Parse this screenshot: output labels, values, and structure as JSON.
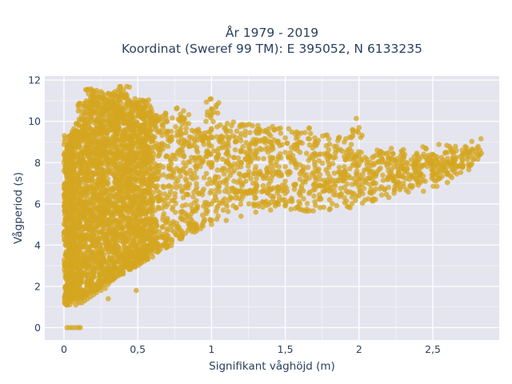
{
  "chart_data": {
    "type": "scatter",
    "title_lines": [
      "År 1979 - 2019",
      "Koordinat (Sweref 99 TM): E 395052, N 6133235"
    ],
    "xlabel": "Signifikant våghöjd (m)",
    "ylabel": "Vågperiod (s)",
    "xlim": [
      -0.13,
      2.95
    ],
    "ylim": [
      -0.6,
      12.2
    ],
    "xticks": [
      0,
      0.5,
      1,
      1.5,
      2,
      2.5
    ],
    "xtick_labels": [
      "0",
      "0,5",
      "1",
      "1,5",
      "2",
      "2,5"
    ],
    "yticks": [
      0,
      2,
      4,
      6,
      8,
      10,
      12
    ],
    "ytick_labels": [
      "0",
      "2",
      "4",
      "6",
      "8",
      "10",
      "12"
    ],
    "grid": true,
    "legend": "none",
    "colors": {
      "marker": "#d4a520",
      "plot_bg": "#e5e5f0",
      "grid": "#ffffff",
      "text": "#2a3f5f"
    },
    "series": [
      {
        "points": [
          [
            0.02,
            0
          ],
          [
            0.04,
            0
          ],
          [
            0.06,
            0
          ],
          [
            0.08,
            0
          ],
          [
            0.1,
            0
          ],
          [
            0.11,
            0
          ],
          [
            0.01,
            1.3
          ],
          [
            0.01,
            1.6
          ],
          [
            0.01,
            2.0
          ],
          [
            0.01,
            2.5
          ],
          [
            0.01,
            3.0
          ],
          [
            0.01,
            3.5
          ],
          [
            0.02,
            4.0
          ],
          [
            0.02,
            4.5
          ],
          [
            0.02,
            5.0
          ],
          [
            0.02,
            5.5
          ],
          [
            0.02,
            6.0
          ],
          [
            0.02,
            6.5
          ],
          [
            0.02,
            7.0
          ],
          [
            0.02,
            7.5
          ],
          [
            0.02,
            8.0
          ],
          [
            0.02,
            8.5
          ],
          [
            0.03,
            8.9
          ],
          [
            0.05,
            1.5
          ],
          [
            0.06,
            2.0
          ],
          [
            0.07,
            2.5
          ],
          [
            0.05,
            3.0
          ],
          [
            0.06,
            3.5
          ],
          [
            0.05,
            4.2
          ],
          [
            0.06,
            5.0
          ],
          [
            0.05,
            6.0
          ],
          [
            0.06,
            7.0
          ],
          [
            0.06,
            8.0
          ],
          [
            0.07,
            8.8
          ],
          [
            0.08,
            1.1
          ],
          [
            0.1,
            1.2
          ],
          [
            0.12,
            1.2
          ],
          [
            0.14,
            1.3
          ],
          [
            0.16,
            1.4
          ],
          [
            0.18,
            1.5
          ],
          [
            0.2,
            1.6
          ],
          [
            0.22,
            1.7
          ],
          [
            0.25,
            1.8
          ],
          [
            0.28,
            1.9
          ],
          [
            0.3,
            2.1
          ],
          [
            0.33,
            2.3
          ],
          [
            0.36,
            2.5
          ],
          [
            0.4,
            2.7
          ],
          [
            0.45,
            3.0
          ],
          [
            0.5,
            3.2
          ],
          [
            0.55,
            3.5
          ],
          [
            0.6,
            3.8
          ],
          [
            0.7,
            4.1
          ],
          [
            0.8,
            4.4
          ],
          [
            0.9,
            4.7
          ],
          [
            0.49,
            1.8
          ],
          [
            0.3,
            1.4
          ],
          [
            0.1,
            2.0
          ],
          [
            0.1,
            3.0
          ],
          [
            0.1,
            4.0
          ],
          [
            0.1,
            5.0
          ],
          [
            0.1,
            6.0
          ],
          [
            0.1,
            7.0
          ],
          [
            0.1,
            8.0
          ],
          [
            0.1,
            9.0
          ],
          [
            0.1,
            9.5
          ],
          [
            0.15,
            2.5
          ],
          [
            0.15,
            3.5
          ],
          [
            0.15,
            4.5
          ],
          [
            0.15,
            5.5
          ],
          [
            0.15,
            6.5
          ],
          [
            0.15,
            7.5
          ],
          [
            0.15,
            8.5
          ],
          [
            0.15,
            9.5
          ],
          [
            0.14,
            10.4
          ],
          [
            0.2,
            2.5
          ],
          [
            0.2,
            3.5
          ],
          [
            0.2,
            4.5
          ],
          [
            0.2,
            5.5
          ],
          [
            0.2,
            6.5
          ],
          [
            0.2,
            7.5
          ],
          [
            0.2,
            8.5
          ],
          [
            0.2,
            9.5
          ],
          [
            0.2,
            10.5
          ],
          [
            0.19,
            11.2
          ],
          [
            0.25,
            3.0
          ],
          [
            0.25,
            4.0
          ],
          [
            0.25,
            5.0
          ],
          [
            0.25,
            6.0
          ],
          [
            0.25,
            7.0
          ],
          [
            0.25,
            8.0
          ],
          [
            0.25,
            9.0
          ],
          [
            0.25,
            10.0
          ],
          [
            0.25,
            11.0
          ],
          [
            0.3,
            3.0
          ],
          [
            0.3,
            4.0
          ],
          [
            0.3,
            5.0
          ],
          [
            0.3,
            6.0
          ],
          [
            0.3,
            7.0
          ],
          [
            0.3,
            8.0
          ],
          [
            0.3,
            9.0
          ],
          [
            0.3,
            10.0
          ],
          [
            0.3,
            10.8
          ],
          [
            0.35,
            3.2
          ],
          [
            0.35,
            4.2
          ],
          [
            0.35,
            5.2
          ],
          [
            0.35,
            6.2
          ],
          [
            0.35,
            7.2
          ],
          [
            0.35,
            8.2
          ],
          [
            0.35,
            9.2
          ],
          [
            0.35,
            10.2
          ],
          [
            0.35,
            11.0
          ],
          [
            0.4,
            3.3
          ],
          [
            0.4,
            4.3
          ],
          [
            0.4,
            5.3
          ],
          [
            0.4,
            6.3
          ],
          [
            0.4,
            7.3
          ],
          [
            0.4,
            8.3
          ],
          [
            0.4,
            9.3
          ],
          [
            0.4,
            10.3
          ],
          [
            0.4,
            11.2
          ],
          [
            0.45,
            3.6
          ],
          [
            0.45,
            4.6
          ],
          [
            0.45,
            5.6
          ],
          [
            0.45,
            6.6
          ],
          [
            0.45,
            7.6
          ],
          [
            0.45,
            8.6
          ],
          [
            0.45,
            9.6
          ],
          [
            0.45,
            10.4
          ],
          [
            0.5,
            3.8
          ],
          [
            0.5,
            4.8
          ],
          [
            0.5,
            5.8
          ],
          [
            0.5,
            6.8
          ],
          [
            0.5,
            7.8
          ],
          [
            0.5,
            8.8
          ],
          [
            0.5,
            9.8
          ],
          [
            0.5,
            10.6
          ],
          [
            0.55,
            4.0
          ],
          [
            0.55,
            5.0
          ],
          [
            0.55,
            6.0
          ],
          [
            0.55,
            7.0
          ],
          [
            0.55,
            8.0
          ],
          [
            0.55,
            9.0
          ],
          [
            0.55,
            9.9
          ],
          [
            0.55,
            10.7
          ],
          [
            0.6,
            4.1
          ],
          [
            0.6,
            5.1
          ],
          [
            0.6,
            6.1
          ],
          [
            0.6,
            7.1
          ],
          [
            0.6,
            8.1
          ],
          [
            0.6,
            9.1
          ],
          [
            0.6,
            9.9
          ],
          [
            0.7,
            4.3
          ],
          [
            0.7,
            5.3
          ],
          [
            0.7,
            6.3
          ],
          [
            0.7,
            7.3
          ],
          [
            0.7,
            8.3
          ],
          [
            0.7,
            9.3
          ],
          [
            0.7,
            10.0
          ],
          [
            0.8,
            4.6
          ],
          [
            0.8,
            5.6
          ],
          [
            0.8,
            6.6
          ],
          [
            0.8,
            7.6
          ],
          [
            0.8,
            8.6
          ],
          [
            0.8,
            9.4
          ],
          [
            0.8,
            10.2
          ],
          [
            0.9,
            4.8
          ],
          [
            0.9,
            5.8
          ],
          [
            0.9,
            6.8
          ],
          [
            0.9,
            7.8
          ],
          [
            0.9,
            8.6
          ],
          [
            0.9,
            9.3
          ],
          [
            1.0,
            5.0
          ],
          [
            1.0,
            6.0
          ],
          [
            1.0,
            7.0
          ],
          [
            1.0,
            8.0
          ],
          [
            1.0,
            8.8
          ],
          [
            1.0,
            9.6
          ],
          [
            1.0,
            10.6
          ],
          [
            1.1,
            5.2
          ],
          [
            1.1,
            6.0
          ],
          [
            1.1,
            7.0
          ],
          [
            1.1,
            8.0
          ],
          [
            1.1,
            8.9
          ],
          [
            1.1,
            9.5
          ],
          [
            1.2,
            5.4
          ],
          [
            1.2,
            6.2
          ],
          [
            1.2,
            7.0
          ],
          [
            1.2,
            7.8
          ],
          [
            1.2,
            8.6
          ],
          [
            1.2,
            9.4
          ],
          [
            1.3,
            5.6
          ],
          [
            1.3,
            6.3
          ],
          [
            1.3,
            7.0
          ],
          [
            1.3,
            7.8
          ],
          [
            1.3,
            8.6
          ],
          [
            1.3,
            9.5
          ],
          [
            1.4,
            5.7
          ],
          [
            1.4,
            6.4
          ],
          [
            1.4,
            7.1
          ],
          [
            1.4,
            7.8
          ],
          [
            1.4,
            8.6
          ],
          [
            1.4,
            9.3
          ],
          [
            1.5,
            5.9
          ],
          [
            1.5,
            6.5
          ],
          [
            1.5,
            7.1
          ],
          [
            1.5,
            7.8
          ],
          [
            1.5,
            8.5
          ],
          [
            1.5,
            9.2
          ],
          [
            1.6,
            6.0
          ],
          [
            1.6,
            6.6
          ],
          [
            1.6,
            7.2
          ],
          [
            1.6,
            7.9
          ],
          [
            1.6,
            8.5
          ],
          [
            1.6,
            9.0
          ],
          [
            1.7,
            6.1
          ],
          [
            1.7,
            6.7
          ],
          [
            1.7,
            7.3
          ],
          [
            1.7,
            7.9
          ],
          [
            1.7,
            8.4
          ],
          [
            1.7,
            9.2
          ],
          [
            1.8,
            6.2
          ],
          [
            1.8,
            6.8
          ],
          [
            1.8,
            7.3
          ],
          [
            1.8,
            7.9
          ],
          [
            1.8,
            8.3
          ],
          [
            1.8,
            8.9
          ],
          [
            1.9,
            6.3
          ],
          [
            1.9,
            6.8
          ],
          [
            1.9,
            7.3
          ],
          [
            1.9,
            7.8
          ],
          [
            1.9,
            8.3
          ],
          [
            1.9,
            9.0
          ],
          [
            2.0,
            6.4
          ],
          [
            2.0,
            6.9
          ],
          [
            2.0,
            7.4
          ],
          [
            2.0,
            7.9
          ],
          [
            2.0,
            8.3
          ],
          [
            2.0,
            9.7
          ],
          [
            2.1,
            6.6
          ],
          [
            2.1,
            7.0
          ],
          [
            2.1,
            7.4
          ],
          [
            2.1,
            7.9
          ],
          [
            2.1,
            8.3
          ],
          [
            2.2,
            6.8
          ],
          [
            2.2,
            7.2
          ],
          [
            2.2,
            7.6
          ],
          [
            2.2,
            8.0
          ],
          [
            2.2,
            8.2
          ],
          [
            2.3,
            7.0
          ],
          [
            2.3,
            7.3
          ],
          [
            2.3,
            7.7
          ],
          [
            2.3,
            8.0
          ],
          [
            2.3,
            8.3
          ],
          [
            2.4,
            7.1
          ],
          [
            2.4,
            7.4
          ],
          [
            2.4,
            7.7
          ],
          [
            2.4,
            8.0
          ],
          [
            2.4,
            8.3
          ],
          [
            2.5,
            7.3
          ],
          [
            2.5,
            7.6
          ],
          [
            2.5,
            7.9
          ],
          [
            2.5,
            8.1
          ],
          [
            2.5,
            8.4
          ],
          [
            2.6,
            7.5
          ],
          [
            2.6,
            7.8
          ],
          [
            2.6,
            8.0
          ],
          [
            2.6,
            8.2
          ],
          [
            2.6,
            8.5
          ],
          [
            2.7,
            7.8
          ],
          [
            2.7,
            8.1
          ],
          [
            2.7,
            8.6
          ],
          [
            2.75,
            8.3
          ],
          [
            2.8,
            8.7
          ],
          [
            2.82,
            8.6
          ]
        ]
      }
    ]
  }
}
